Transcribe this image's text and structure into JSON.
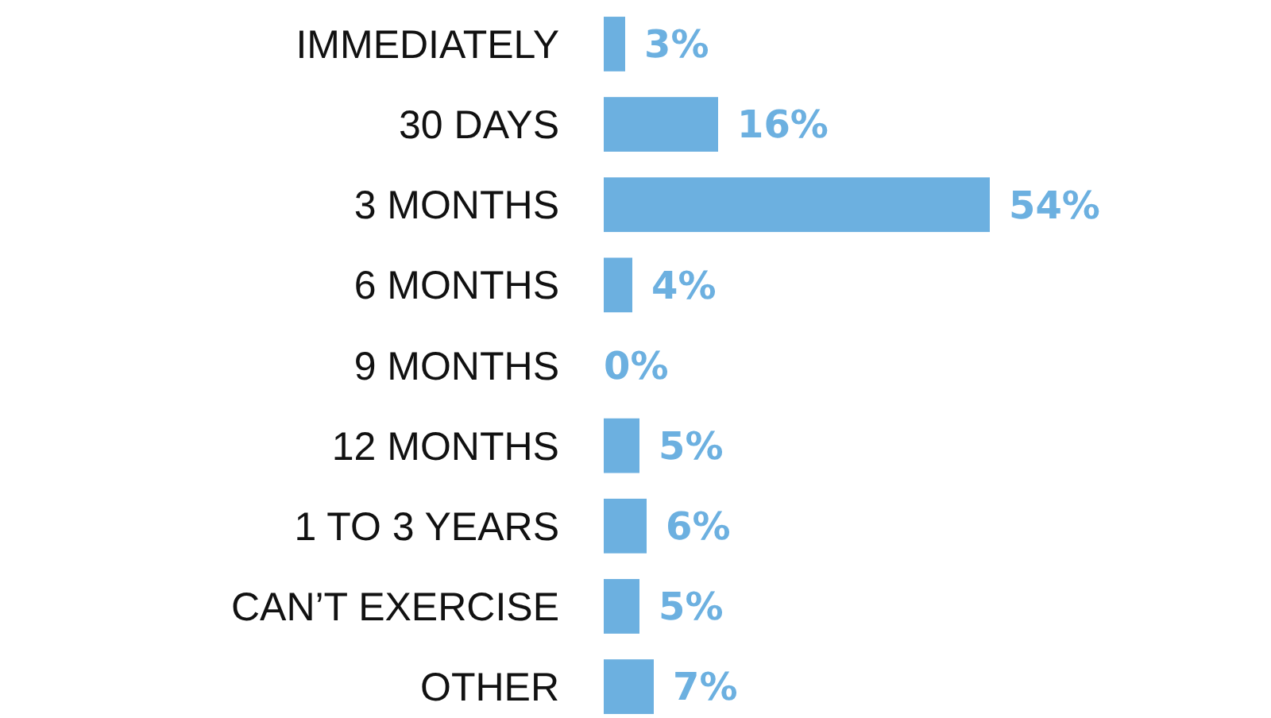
{
  "chart_data": {
    "type": "bar",
    "orientation": "horizontal",
    "categories": [
      "IMMEDIATELY",
      "30 DAYS",
      "3 MONTHS",
      "6 MONTHS",
      "9 MONTHS",
      "12 MONTHS",
      "1 TO 3 YEARS",
      "CAN’T EXERCISE",
      "OTHER"
    ],
    "values": [
      3,
      16,
      54,
      4,
      0,
      5,
      6,
      5,
      7
    ],
    "color": "#6cb0e0",
    "value_labels": [
      "3%",
      "16%",
      "54%",
      "4%",
      "0%",
      "5%",
      "6%",
      "5%",
      "7%"
    ]
  }
}
